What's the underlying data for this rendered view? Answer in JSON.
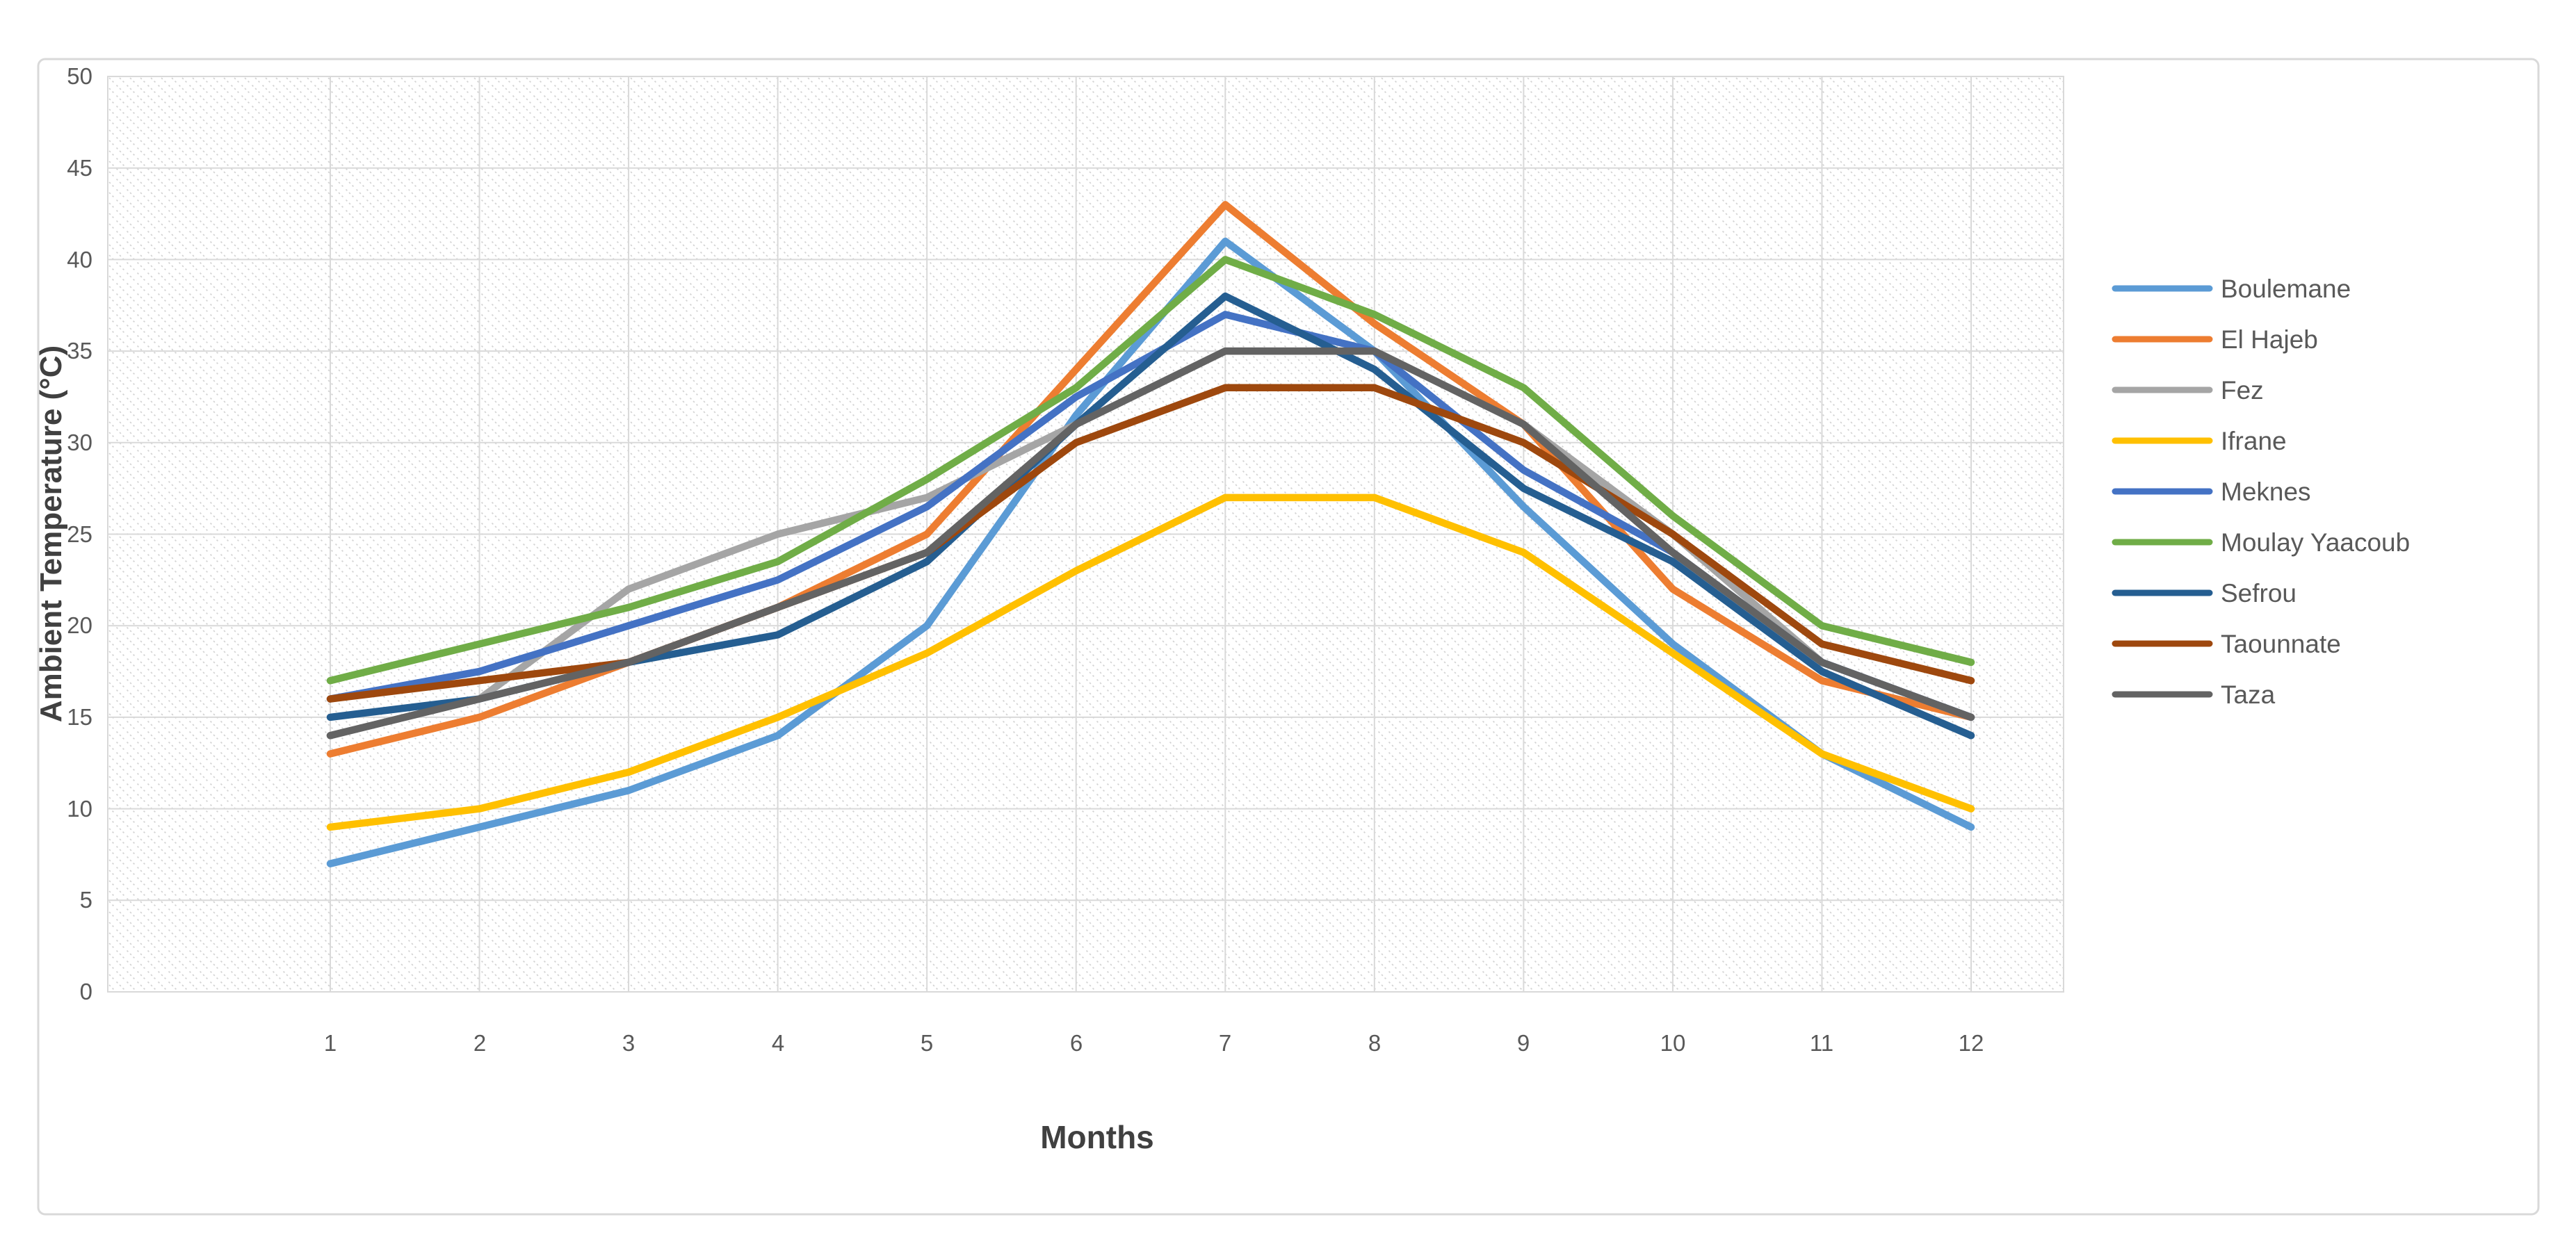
{
  "chart": {
    "y_axis_title": "Ambient Temperature (°C)",
    "x_axis_title": "Months",
    "y_tick_labels": [
      "0",
      "5",
      "10",
      "15",
      "20",
      "25",
      "30",
      "35",
      "40",
      "45",
      "50"
    ],
    "x_tick_labels": [
      "1",
      "2",
      "3",
      "4",
      "5",
      "6",
      "7",
      "8",
      "9",
      "10",
      "11",
      "12"
    ],
    "gridline_color": "#d9d9d9",
    "tick_color": "#595959",
    "title_color": "#404040",
    "plot_hatch_color": "#cdcdcd"
  },
  "chart_data": {
    "type": "line",
    "title": "",
    "xlabel": "Months",
    "ylabel": "Ambient Temperature (°C)",
    "x": [
      1,
      2,
      3,
      4,
      5,
      6,
      7,
      8,
      9,
      10,
      11,
      12
    ],
    "ylim": [
      0,
      50
    ],
    "y_tick_step": 5,
    "grid": true,
    "legend_position": "right",
    "series": [
      {
        "name": "Boulemane",
        "color": "#5B9BD5",
        "values": [
          7,
          9,
          11,
          14,
          20,
          31.5,
          41,
          35,
          26.5,
          19,
          13,
          9
        ]
      },
      {
        "name": "El Hajeb",
        "color": "#ED7D31",
        "values": [
          13,
          15,
          18,
          21,
          25,
          34,
          43,
          36.5,
          31,
          22,
          17,
          15
        ]
      },
      {
        "name": "Fez",
        "color": "#A5A5A5",
        "values": [
          14,
          16,
          22,
          25,
          27,
          31,
          35,
          35,
          31,
          25,
          18,
          15
        ]
      },
      {
        "name": "Ifrane",
        "color": "#FFC000",
        "values": [
          9,
          10,
          12,
          15,
          18.5,
          23,
          27,
          27,
          24,
          18.5,
          13,
          10
        ]
      },
      {
        "name": "Meknes",
        "color": "#4472C4",
        "values": [
          16,
          17.5,
          20,
          22.5,
          26.5,
          32.5,
          37,
          35,
          28.5,
          24,
          18,
          15
        ]
      },
      {
        "name": "Moulay Yaacoub",
        "color": "#70AD47",
        "values": [
          17,
          19,
          21,
          23.5,
          28,
          33,
          40,
          37,
          33,
          26,
          20,
          18
        ]
      },
      {
        "name": "Sefrou",
        "color": "#255E91",
        "values": [
          15,
          16,
          18,
          19.5,
          23.5,
          31,
          38,
          34,
          27.5,
          23.5,
          17.5,
          14
        ]
      },
      {
        "name": "Taounnate",
        "color": "#9E480E",
        "values": [
          16,
          17,
          18,
          21,
          24,
          30,
          33,
          33,
          30,
          25,
          19,
          17
        ]
      },
      {
        "name": "Taza",
        "color": "#636363",
        "values": [
          14,
          16,
          18,
          21,
          24,
          31,
          35,
          35,
          31,
          24,
          18,
          15
        ]
      }
    ]
  }
}
